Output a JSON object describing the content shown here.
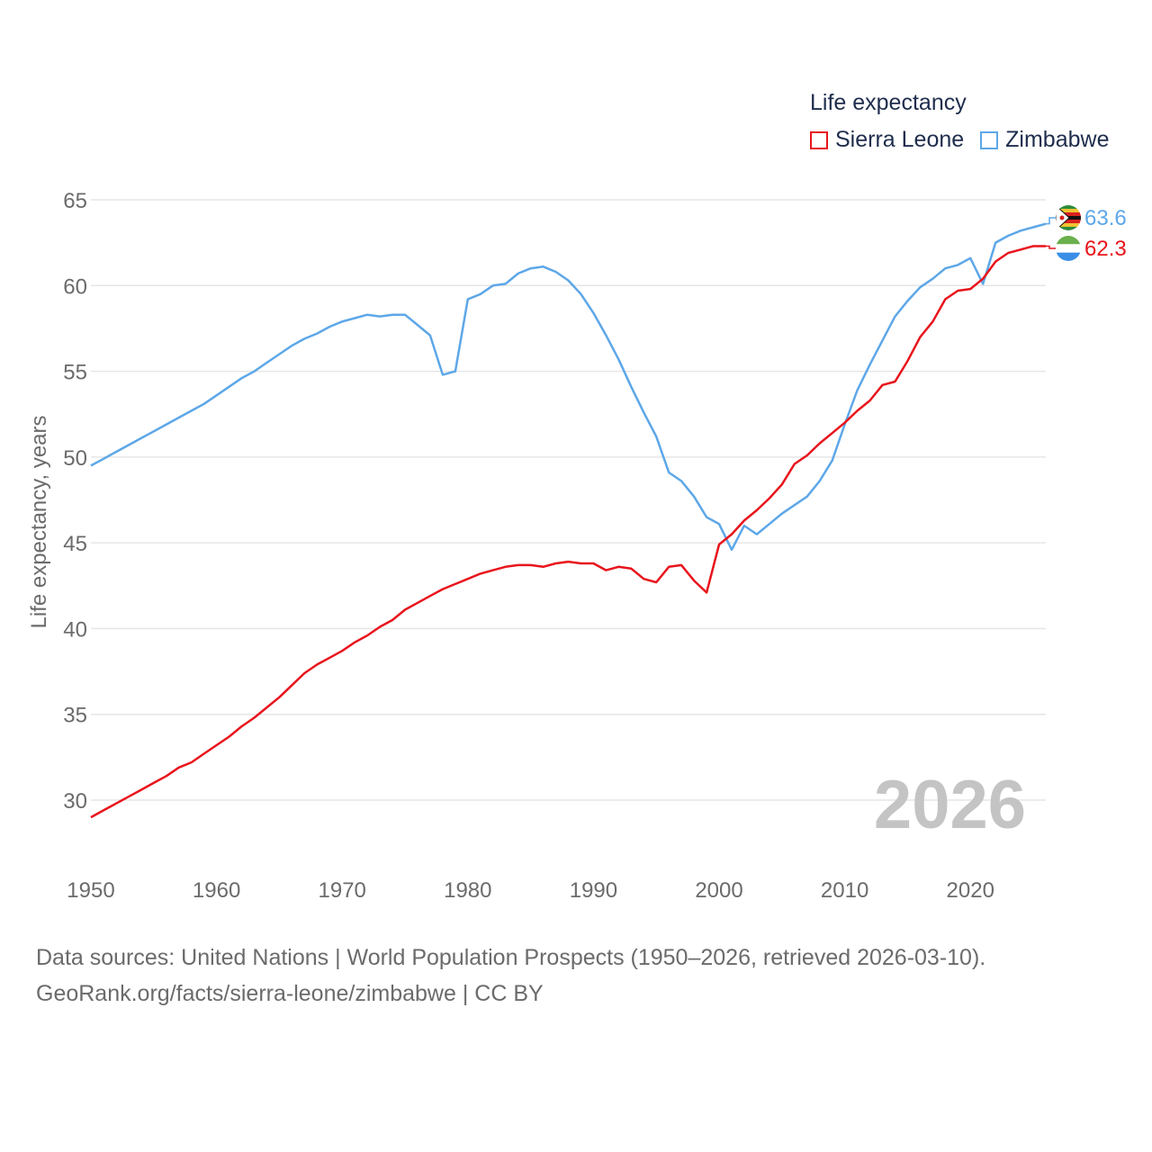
{
  "legend": {
    "title": "Life expectancy",
    "items": [
      {
        "label": "Sierra Leone",
        "color": "#e8141c"
      },
      {
        "label": "Zimbabwe",
        "color": "#5da7e8"
      }
    ]
  },
  "source": {
    "line1": "Data sources: United Nations | World Population Prospects (1950–2026, retrieved 2026-03-10).",
    "line2": "GeoRank.org/facts/sierra-leone/zimbabwe | CC BY"
  },
  "chart_data": {
    "type": "line",
    "title": "Life expectancy",
    "xlabel": "",
    "ylabel": "Life expectancy, years",
    "xlim": [
      1950,
      2026
    ],
    "ylim": [
      27.5,
      65
    ],
    "xticks": [
      1950,
      1960,
      1970,
      1980,
      1990,
      2000,
      2010,
      2020
    ],
    "yticks": [
      30,
      35,
      40,
      45,
      50,
      55,
      60,
      65
    ],
    "year_label": "2026",
    "grid": true,
    "legend_position": "top-right",
    "x": [
      1950,
      1951,
      1952,
      1953,
      1954,
      1955,
      1956,
      1957,
      1958,
      1959,
      1960,
      1961,
      1962,
      1963,
      1964,
      1965,
      1966,
      1967,
      1968,
      1969,
      1970,
      1971,
      1972,
      1973,
      1974,
      1975,
      1976,
      1977,
      1978,
      1979,
      1980,
      1981,
      1982,
      1983,
      1984,
      1985,
      1986,
      1987,
      1988,
      1989,
      1990,
      1991,
      1992,
      1993,
      1994,
      1995,
      1996,
      1997,
      1998,
      1999,
      2000,
      2001,
      2002,
      2003,
      2004,
      2005,
      2006,
      2007,
      2008,
      2009,
      2010,
      2011,
      2012,
      2013,
      2014,
      2015,
      2016,
      2017,
      2018,
      2019,
      2020,
      2021,
      2022,
      2023,
      2024,
      2025,
      2026
    ],
    "series": [
      {
        "name": "Sierra Leone",
        "color": "#e8141c",
        "end_label": "62.3",
        "values": [
          29.0,
          29.4,
          29.8,
          30.2,
          30.6,
          31.0,
          31.4,
          31.9,
          32.2,
          32.7,
          33.2,
          33.7,
          34.3,
          34.8,
          35.4,
          36.0,
          36.7,
          37.4,
          37.9,
          38.3,
          38.7,
          39.2,
          39.6,
          40.1,
          40.5,
          41.1,
          41.5,
          41.9,
          42.3,
          42.6,
          42.9,
          43.2,
          43.4,
          43.6,
          43.7,
          43.7,
          43.6,
          43.8,
          43.9,
          43.8,
          43.8,
          43.4,
          43.6,
          43.5,
          42.9,
          42.7,
          43.6,
          43.7,
          42.8,
          42.1,
          44.9,
          45.5,
          46.3,
          46.9,
          47.6,
          48.4,
          49.6,
          50.1,
          50.8,
          51.4,
          52.0,
          52.7,
          53.3,
          54.2,
          54.4,
          55.6,
          57.0,
          57.9,
          59.2,
          59.7,
          59.8,
          60.4,
          61.4,
          61.9,
          62.1,
          62.3,
          62.3
        ]
      },
      {
        "name": "Zimbabwe",
        "color": "#5da7e8",
        "end_label": "63.6",
        "values": [
          49.5,
          49.9,
          50.3,
          50.7,
          51.1,
          51.5,
          51.9,
          52.3,
          52.7,
          53.1,
          53.6,
          54.1,
          54.6,
          55.0,
          55.5,
          56.0,
          56.5,
          56.9,
          57.2,
          57.6,
          57.9,
          58.1,
          58.3,
          58.2,
          58.3,
          58.3,
          57.7,
          57.1,
          54.8,
          55.0,
          59.2,
          59.5,
          60.0,
          60.1,
          60.7,
          61.0,
          61.1,
          60.8,
          60.3,
          59.5,
          58.4,
          57.1,
          55.7,
          54.1,
          52.6,
          51.2,
          49.1,
          48.6,
          47.7,
          46.5,
          46.1,
          44.6,
          46.0,
          45.5,
          46.1,
          46.7,
          47.2,
          47.7,
          48.6,
          49.8,
          51.9,
          53.9,
          55.4,
          56.8,
          58.2,
          59.1,
          59.9,
          60.4,
          61.0,
          61.2,
          61.6,
          60.1,
          62.5,
          62.9,
          63.2,
          63.4,
          63.6
        ]
      }
    ]
  }
}
